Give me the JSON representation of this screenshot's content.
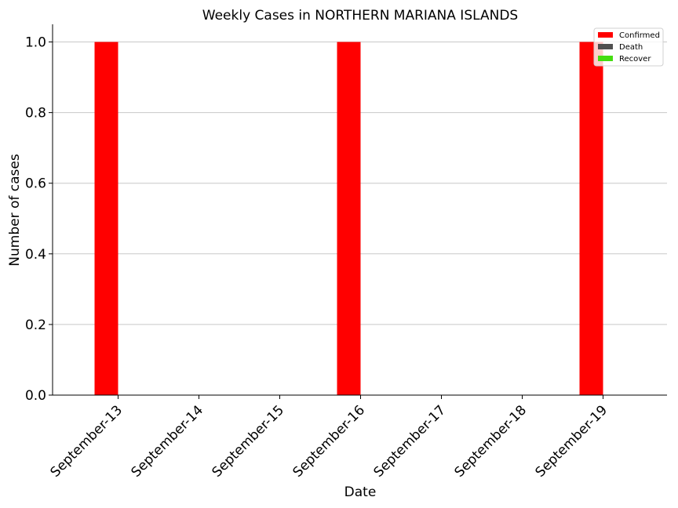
{
  "chart_data": {
    "type": "bar",
    "title": "Weekly Cases in NORTHERN MARIANA ISLANDS",
    "xlabel": "Date",
    "ylabel": "Number of cases",
    "categories": [
      "September-13",
      "September-14",
      "September-15",
      "September-16",
      "September-17",
      "September-18",
      "September-19"
    ],
    "series": [
      {
        "name": "Confirmed",
        "color": "#ff0000",
        "values": [
          1,
          0,
          0,
          1,
          0,
          0,
          1
        ]
      },
      {
        "name": "Death",
        "color": "#505050",
        "values": [
          0,
          0,
          0,
          0,
          0,
          0,
          0
        ]
      },
      {
        "name": "Recover",
        "color": "#44dd11",
        "values": [
          0,
          0,
          0,
          0,
          0,
          0,
          0
        ]
      }
    ],
    "ylim": [
      0,
      1.05
    ],
    "yticks": [
      0.0,
      0.2,
      0.4,
      0.6,
      0.8,
      1.0
    ],
    "ytick_labels": [
      "0.0",
      "0.2",
      "0.4",
      "0.6",
      "0.8",
      "1.0"
    ],
    "grid": "horizontal",
    "legend_position": "top-right"
  }
}
